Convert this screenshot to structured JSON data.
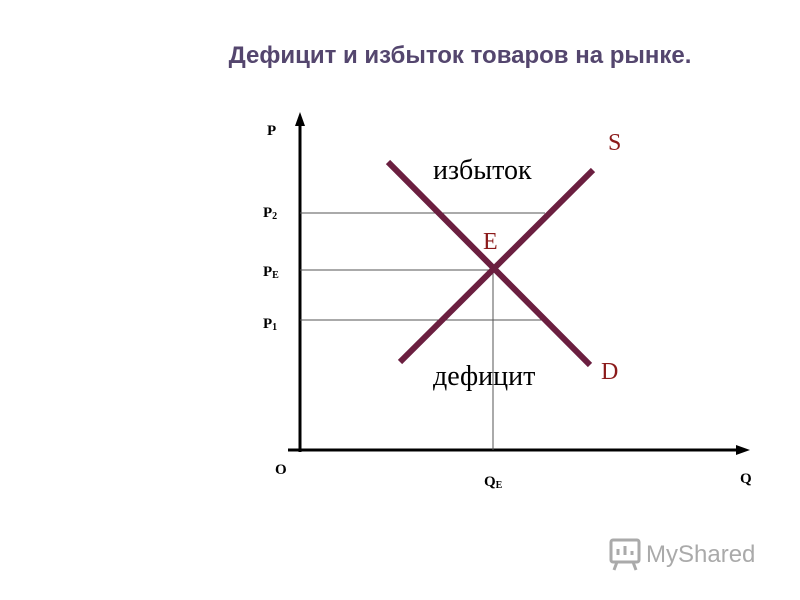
{
  "header": {
    "title": "Дефицит и избыток товаров на рынке."
  },
  "axes": {
    "y_label": "P",
    "x_label": "Q",
    "origin": "O"
  },
  "price_labels": [
    {
      "letter": "P",
      "sub": "2"
    },
    {
      "letter": "P",
      "sub": "E"
    },
    {
      "letter": "P",
      "sub": "1"
    }
  ],
  "quantity_label": {
    "letter": "Q",
    "sub": "E"
  },
  "curves": {
    "supply": "S",
    "demand": "D",
    "equilibrium": "E"
  },
  "regions": {
    "surplus": "избыток",
    "shortage": "дефицит"
  },
  "watermark": "MyShared"
}
